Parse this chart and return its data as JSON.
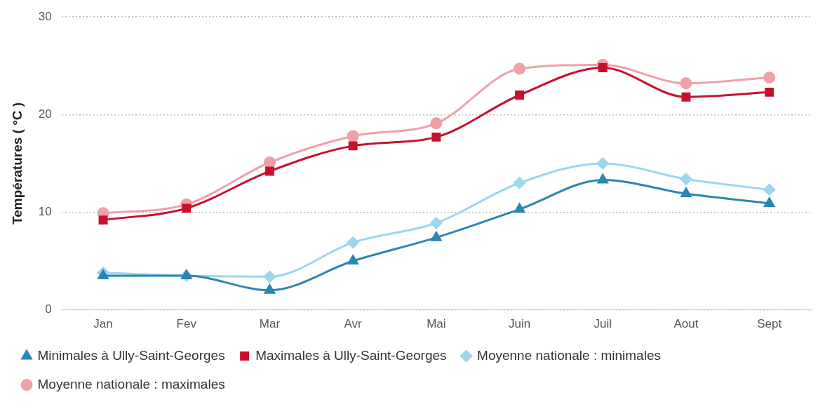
{
  "chart_data": {
    "type": "line",
    "ylabel": "Températures ( °C )",
    "categories": [
      "Jan",
      "Fev",
      "Mar",
      "Avr",
      "Mai",
      "Juin",
      "Juil",
      "Aout",
      "Sept"
    ],
    "series": [
      {
        "name": "Moyenne nationale : maximales",
        "color": "#f0a0a8",
        "marker": "circle",
        "values": [
          9.9,
          10.8,
          15.1,
          17.8,
          19.1,
          24.7,
          25.1,
          23.2,
          23.8
        ]
      },
      {
        "name": "Moyenne nationale : minimales",
        "color": "#9dd6ee",
        "marker": "diamond",
        "values": [
          3.8,
          3.5,
          3.4,
          6.9,
          8.9,
          13.0,
          15.0,
          13.4,
          12.3
        ]
      },
      {
        "name": "Maximales à Ully-Saint-Georges",
        "color": "#c8102e",
        "marker": "square",
        "values": [
          9.2,
          10.4,
          14.2,
          16.8,
          17.7,
          22.0,
          24.8,
          21.8,
          22.3
        ]
      },
      {
        "name": "Minimales à Ully-Saint-Georges",
        "color": "#2a86b4",
        "marker": "triangle",
        "values": [
          3.5,
          3.5,
          2.0,
          5.0,
          7.4,
          10.3,
          13.3,
          11.9,
          10.9
        ]
      }
    ],
    "ylim": [
      0,
      30
    ],
    "yticks": [
      0,
      10,
      20,
      30
    ],
    "grid": "y",
    "legend": "bottom"
  }
}
